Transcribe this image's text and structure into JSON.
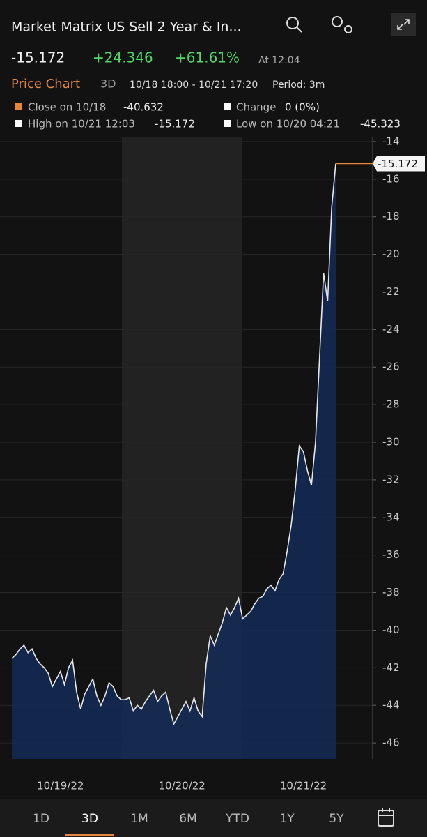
{
  "header": {
    "title": "Market Matrix US Sell 2 Year & In...",
    "price": "-15.172",
    "change": "+24.346",
    "change_pct": "+61.61%",
    "time": "At 12:04"
  },
  "chart_bar": {
    "title": "Price Chart",
    "range_tab": "3D",
    "range": "10/18 18:00 - 10/21 17:20",
    "period": "Period: 3m"
  },
  "chart_data": {
    "type": "line",
    "legend": {
      "close_label": "Close on 10/18",
      "close_value": -40.632,
      "change_label": "Change",
      "change_value": "0 (0%)",
      "high_label": "High on 10/21 12:03",
      "high_value": -15.172,
      "low_label": "Low on 10/20 04:21",
      "low_value": -45.323
    },
    "categories": [
      null,
      null,
      null,
      null,
      null,
      null,
      null,
      null,
      null,
      null,
      null,
      null,
      "10/19/22",
      null,
      null,
      null,
      null,
      null,
      null,
      null,
      null,
      null,
      null,
      null,
      null,
      null,
      null,
      null,
      null,
      null,
      null,
      null,
      null,
      null,
      null,
      null,
      null,
      null,
      null,
      null,
      null,
      null,
      "10/20/22",
      null,
      null,
      null,
      null,
      null,
      null,
      null,
      null,
      null,
      null,
      null,
      null,
      null,
      null,
      null,
      null,
      null,
      null,
      null,
      null,
      null,
      null,
      null,
      null,
      null,
      null,
      null,
      null,
      null,
      "10/21/22",
      null,
      null,
      null,
      null,
      null,
      null,
      null,
      null
    ],
    "series": [
      {
        "color": "#e8e8e8",
        "fill": "#142a57",
        "values": [
          -41.5,
          -41.3,
          -41.0,
          -40.8,
          -41.2,
          -41.0,
          -41.5,
          -41.8,
          -42.0,
          -42.3,
          -43.0,
          -42.6,
          -42.2,
          -42.9,
          -42.0,
          -41.6,
          -43.3,
          -44.2,
          -43.4,
          -43.0,
          -42.6,
          -43.5,
          -44.0,
          -43.5,
          -42.8,
          -43.0,
          -43.5,
          -43.7,
          -43.7,
          -43.6,
          -44.3,
          -44.0,
          -44.2,
          -43.8,
          -43.5,
          -43.2,
          -43.8,
          -43.5,
          -43.3,
          -44.2,
          -45.0,
          -44.6,
          -44.2,
          -43.8,
          -44.3,
          -43.6,
          -44.3,
          -44.6,
          -41.8,
          -40.3,
          -40.8,
          -40.2,
          -39.6,
          -38.8,
          -39.2,
          -38.8,
          -38.3,
          -39.4,
          -39.2,
          -39.0,
          -38.6,
          -38.3,
          -38.2,
          -37.8,
          -37.6,
          -37.9,
          -37.3,
          -37.0,
          -35.8,
          -34.4,
          -32.5,
          -30.2,
          -30.5,
          -31.5,
          -32.3,
          -30.0,
          -25.5,
          -21.0,
          -22.5,
          -17.5,
          -15.172
        ]
      }
    ],
    "close_line_color": "#e8873a",
    "ylim": [
      -46.85,
      -13.78
    ],
    "yticks": [
      -14,
      -16,
      -18,
      -20,
      -22,
      -24,
      -26,
      -28,
      -30,
      -32,
      -34,
      -36,
      -38,
      -40,
      -42,
      -44,
      -46
    ],
    "grid": true
  },
  "tabs": [
    "1D",
    "3D",
    "1M",
    "6M",
    "YTD",
    "1Y",
    "5Y"
  ],
  "selected_tab": 1
}
